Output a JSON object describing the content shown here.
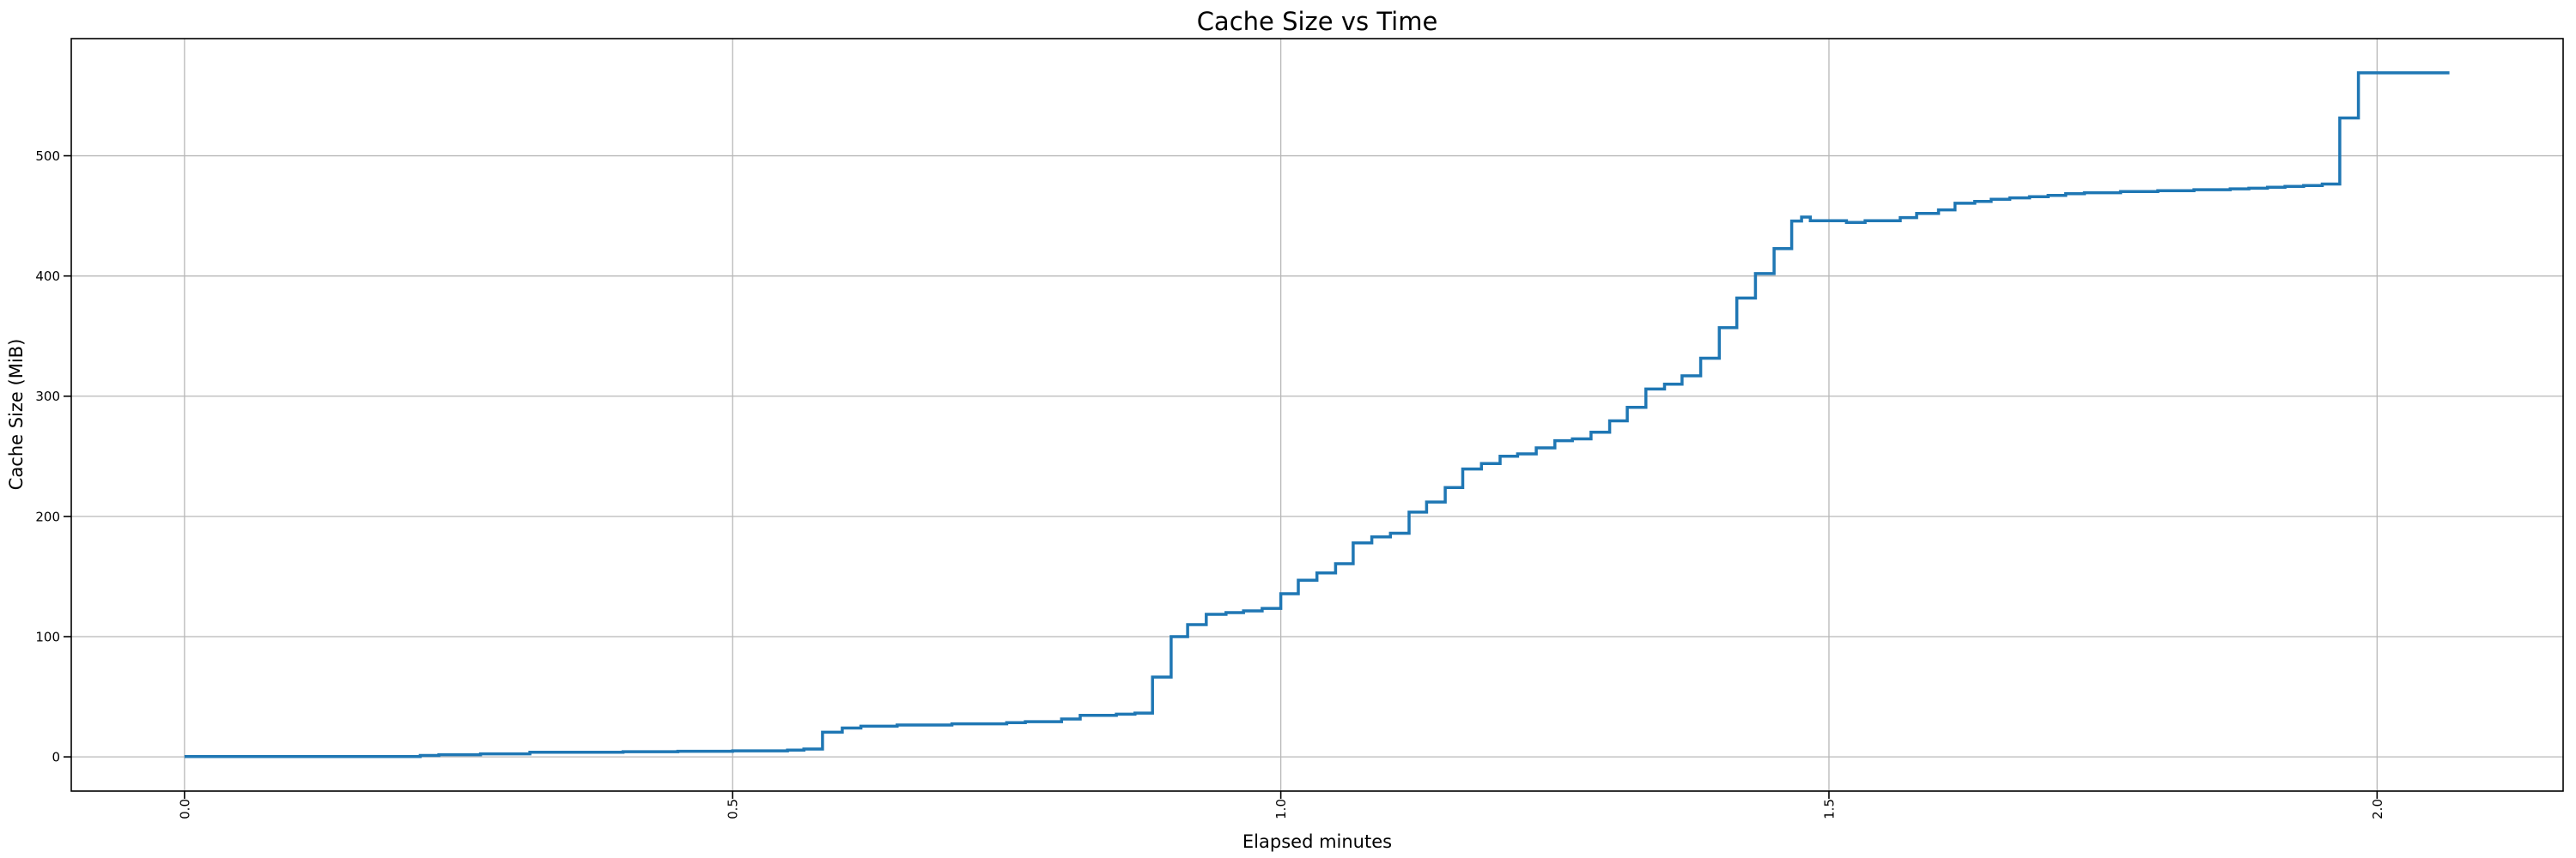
{
  "figure": {
    "background": "#ffffff",
    "plot_background": "#ffffff"
  },
  "chart_data": {
    "type": "line",
    "line_style": "step-post",
    "title": "Cache Size vs Time",
    "xlabel": "Elapsed minutes",
    "ylabel": "Cache Size (MiB)",
    "xlim": [
      -0.1033,
      2.1697
    ],
    "ylim": [
      -28.45,
      597.45
    ],
    "x_ticks": [
      0.0,
      0.5,
      1.0,
      1.5,
      2.0
    ],
    "x_tick_labels": [
      "0.0",
      "0.5",
      "1.0",
      "1.5",
      "2.0"
    ],
    "y_ticks": [
      0,
      100,
      200,
      300,
      400,
      500
    ],
    "y_tick_labels": [
      "0",
      "100",
      "200",
      "300",
      "400",
      "500"
    ],
    "grid": true,
    "legend_position": "none",
    "line_color": "#1f77b4",
    "grid_color": "#b8b8b8",
    "spine_color": "#000000",
    "line_width": 3.5,
    "series": [
      {
        "name": "cache-size",
        "points": [
          [
            0.0,
            0.3
          ],
          [
            0.215,
            1.2
          ],
          [
            0.232,
            1.8
          ],
          [
            0.27,
            2.5
          ],
          [
            0.315,
            3.8
          ],
          [
            0.4,
            4.3
          ],
          [
            0.45,
            4.7
          ],
          [
            0.5,
            5.0
          ],
          [
            0.55,
            5.6
          ],
          [
            0.565,
            6.5
          ],
          [
            0.582,
            20.5
          ],
          [
            0.6,
            24.0
          ],
          [
            0.617,
            25.5
          ],
          [
            0.65,
            26.5
          ],
          [
            0.7,
            27.5
          ],
          [
            0.75,
            28.5
          ],
          [
            0.767,
            29.3
          ],
          [
            0.8,
            31.5
          ],
          [
            0.817,
            34.5
          ],
          [
            0.85,
            35.5
          ],
          [
            0.867,
            36.4
          ],
          [
            0.883,
            66.4
          ],
          [
            0.9,
            100.0
          ],
          [
            0.915,
            110.0
          ],
          [
            0.932,
            118.6
          ],
          [
            0.95,
            120.0
          ],
          [
            0.966,
            121.4
          ],
          [
            0.983,
            123.5
          ],
          [
            1.0,
            135.7
          ],
          [
            1.016,
            147.0
          ],
          [
            1.033,
            153.0
          ],
          [
            1.05,
            160.7
          ],
          [
            1.066,
            178.0
          ],
          [
            1.083,
            183.0
          ],
          [
            1.1,
            186.0
          ],
          [
            1.117,
            203.6
          ],
          [
            1.133,
            212.0
          ],
          [
            1.15,
            224.0
          ],
          [
            1.166,
            239.5
          ],
          [
            1.183,
            244.0
          ],
          [
            1.2,
            250.0
          ],
          [
            1.216,
            252.0
          ],
          [
            1.233,
            257.0
          ],
          [
            1.25,
            263.0
          ],
          [
            1.266,
            264.5
          ],
          [
            1.283,
            270.0
          ],
          [
            1.3,
            279.5
          ],
          [
            1.316,
            290.7
          ],
          [
            1.333,
            306.0
          ],
          [
            1.35,
            310.0
          ],
          [
            1.366,
            317.0
          ],
          [
            1.383,
            331.6
          ],
          [
            1.4,
            357.0
          ],
          [
            1.416,
            381.6
          ],
          [
            1.433,
            402.0
          ],
          [
            1.45,
            422.8
          ],
          [
            1.466,
            445.7
          ],
          [
            1.475,
            449.0
          ],
          [
            1.483,
            446.0
          ],
          [
            1.516,
            444.5
          ],
          [
            1.533,
            446.0
          ],
          [
            1.565,
            448.6
          ],
          [
            1.58,
            452.0
          ],
          [
            1.6,
            455.0
          ],
          [
            1.615,
            460.5
          ],
          [
            1.633,
            462.0
          ],
          [
            1.648,
            463.8
          ],
          [
            1.665,
            465.0
          ],
          [
            1.683,
            466.0
          ],
          [
            1.7,
            467.0
          ],
          [
            1.716,
            468.5
          ],
          [
            1.733,
            469.3
          ],
          [
            1.766,
            470.2
          ],
          [
            1.8,
            471.0
          ],
          [
            1.833,
            471.8
          ],
          [
            1.866,
            472.5
          ],
          [
            1.883,
            473.0
          ],
          [
            1.9,
            473.8
          ],
          [
            1.916,
            474.5
          ],
          [
            1.933,
            475.2
          ],
          [
            1.95,
            476.5
          ],
          [
            1.966,
            531.4
          ],
          [
            1.983,
            569.0
          ],
          [
            2.066,
            569.0
          ]
        ]
      }
    ]
  }
}
